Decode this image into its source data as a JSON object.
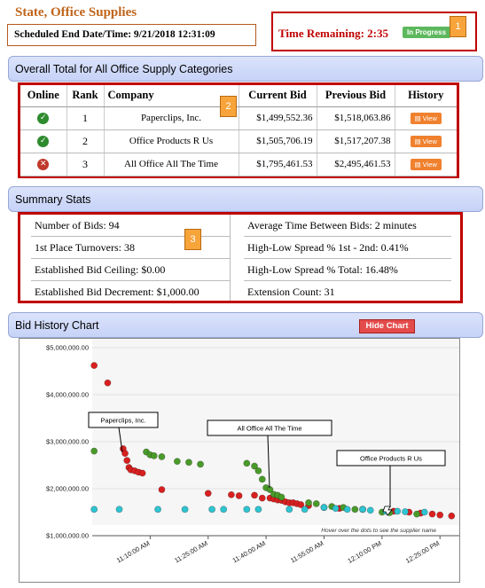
{
  "page_title": "State, Office Supplies",
  "end_date": "Scheduled End Date/Time: 9/21/2018 12:31:09",
  "time_remaining": {
    "label": "Time Remaining:",
    "value": "2:35",
    "status": "In Progress"
  },
  "callouts": [
    "1",
    "2",
    "3"
  ],
  "overall": {
    "header": "Overall Total for All Office Supply Categories",
    "columns": [
      "Online",
      "Rank",
      "Company",
      "Current Bid",
      "Previous Bid",
      "History"
    ],
    "rows": [
      {
        "online": true,
        "rank": "1",
        "company": "Paperclips, Inc.",
        "current": "$1,499,552.36",
        "previous": "$1,518,063.86",
        "history": "View"
      },
      {
        "online": true,
        "rank": "2",
        "company": "Office Products R Us",
        "current": "$1,505,706.19",
        "previous": "$1,517,207.38",
        "history": "View"
      },
      {
        "online": false,
        "rank": "3",
        "company": "All Office All The Time",
        "current": "$1,795,461.53",
        "previous": "$2,495,461.53",
        "history": "View"
      }
    ]
  },
  "summary": {
    "header": "Summary Stats",
    "left": [
      "Number of Bids: 94",
      "1st Place Turnovers: 38",
      "Established Bid Ceiling:  $0.00",
      "Established Bid Decrement: $1,000.00"
    ],
    "right": [
      "Average Time Between Bids:  2 minutes",
      "High-Low Spread % 1st - 2nd:  0.41%",
      "High-Low Spread % Total: 16.48%",
      "Extension Count: 31"
    ]
  },
  "chart_section": {
    "header": "Bid History Chart",
    "hide_button": "Hide Chart"
  },
  "chart_data": {
    "type": "scatter",
    "y_ticks": [
      "$5,000,000.00",
      "$4,000,000.00",
      "$3,000,000.00",
      "$2,000,000.00",
      "$1,000,000.00"
    ],
    "x_ticks": [
      "11:10:00 AM",
      "11:25:00 AM",
      "11:40:00 AM",
      "11:55:00 AM",
      "12:10:00 PM",
      "12:25:00 PM"
    ],
    "ylim": [
      1000000,
      5000000
    ],
    "xlim_minutes": [
      0,
      95
    ],
    "x_tick_minutes": [
      15,
      30,
      45,
      60,
      75,
      90
    ],
    "hint": "Hover over the dots to see the supplier name",
    "annotations": [
      "Paperclips, Inc.",
      "All Office All The Time",
      "Office Products R Us"
    ],
    "colors": {
      "red": "#d92020",
      "green": "#4a9a2a",
      "cyan": "#2ec4d1"
    },
    "series": [
      {
        "color": "red",
        "points": [
          [
            0.5,
            4620000
          ],
          [
            4,
            4250000
          ],
          [
            8,
            2850000
          ],
          [
            8.5,
            2750000
          ],
          [
            9,
            2600000
          ],
          [
            9.5,
            2450000
          ],
          [
            10,
            2400000
          ],
          [
            11,
            2380000
          ],
          [
            12,
            2350000
          ],
          [
            13,
            2330000
          ],
          [
            18,
            1980000
          ],
          [
            30,
            1900000
          ],
          [
            36,
            1870000
          ],
          [
            38,
            1850000
          ],
          [
            42,
            1860000
          ],
          [
            44,
            1800000
          ],
          [
            46,
            1800000
          ],
          [
            47,
            1780000
          ],
          [
            48,
            1760000
          ],
          [
            49,
            1750000
          ],
          [
            50,
            1720000
          ],
          [
            51,
            1700000
          ],
          [
            52,
            1700000
          ],
          [
            53,
            1680000
          ],
          [
            54,
            1660000
          ],
          [
            56,
            1640000
          ],
          [
            60,
            1600000
          ],
          [
            64,
            1580000
          ],
          [
            70,
            1560000
          ],
          [
            78,
            1520000
          ],
          [
            82,
            1500000
          ],
          [
            85,
            1480000
          ],
          [
            88,
            1460000
          ],
          [
            90,
            1440000
          ],
          [
            93,
            1420000
          ]
        ]
      },
      {
        "color": "green",
        "points": [
          [
            0.5,
            2800000
          ],
          [
            14,
            2780000
          ],
          [
            15,
            2720000
          ],
          [
            16,
            2700000
          ],
          [
            18,
            2680000
          ],
          [
            22,
            2580000
          ],
          [
            25,
            2560000
          ],
          [
            28,
            2520000
          ],
          [
            40,
            2540000
          ],
          [
            42,
            2480000
          ],
          [
            43,
            2380000
          ],
          [
            44,
            2200000
          ],
          [
            45,
            2020000
          ],
          [
            46,
            1980000
          ],
          [
            47,
            1880000
          ],
          [
            48,
            1860000
          ],
          [
            49,
            1820000
          ],
          [
            56,
            1700000
          ],
          [
            58,
            1680000
          ],
          [
            62,
            1620000
          ],
          [
            65,
            1600000
          ],
          [
            68,
            1560000
          ],
          [
            75,
            1500000
          ],
          [
            77,
            1490000
          ],
          [
            84,
            1460000
          ]
        ]
      },
      {
        "color": "cyan",
        "points": [
          [
            0.5,
            1560000
          ],
          [
            7,
            1560000
          ],
          [
            17,
            1560000
          ],
          [
            24,
            1560000
          ],
          [
            31,
            1560000
          ],
          [
            34,
            1560000
          ],
          [
            40,
            1560000
          ],
          [
            43,
            1560000
          ],
          [
            51,
            1560000
          ],
          [
            55,
            1560000
          ],
          [
            60,
            1600000
          ],
          [
            63,
            1580000
          ],
          [
            66,
            1560000
          ],
          [
            70,
            1560000
          ],
          [
            72,
            1540000
          ],
          [
            76,
            1520000
          ],
          [
            79,
            1520000
          ],
          [
            81,
            1510000
          ],
          [
            86,
            1500000
          ]
        ]
      }
    ]
  }
}
